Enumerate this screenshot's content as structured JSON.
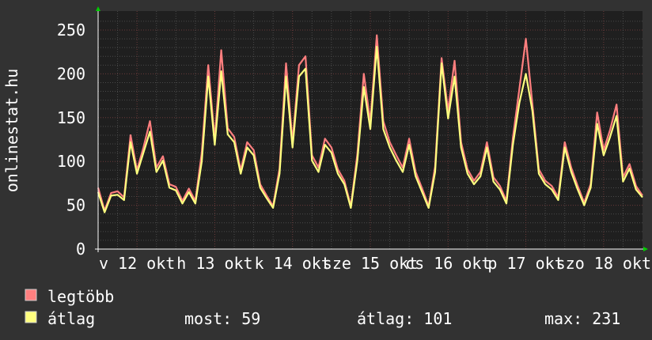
{
  "chart_data": {
    "type": "line",
    "ylabel": "onlinestat.hu",
    "ylim": [
      0,
      260
    ],
    "yticks": [
      0,
      50,
      100,
      150,
      200,
      250
    ],
    "x_hours": 168,
    "x_step_hours": 2,
    "xtick_labels": [
      "v 12 okt",
      "h 13 okt",
      "k 14 okt",
      "sze 15 okt",
      "cs 16 okt",
      "p 17 okt",
      "szo 18 okt"
    ],
    "grid": true,
    "series": [
      {
        "name": "legtöbb",
        "color": "#ff7f7f",
        "values": [
          70,
          44,
          64,
          66,
          59,
          130,
          90,
          116,
          146,
          93,
          106,
          74,
          71,
          55,
          69,
          55,
          110,
          210,
          125,
          227,
          138,
          128,
          90,
          122,
          113,
          74,
          61,
          49,
          92,
          212,
          122,
          210,
          220,
          107,
          93,
          126,
          116,
          91,
          78,
          49,
          108,
          200,
          145,
          244,
          146,
          122,
          107,
          93,
          126,
          88,
          69,
          49,
          94,
          218,
          158,
          215,
          122,
          91,
          78,
          88,
          122,
          82,
          72,
          55,
          127,
          183,
          240,
          166,
          91,
          78,
          72,
          59,
          122,
          93,
          72,
          53,
          74,
          156,
          113,
          136,
          165,
          82,
          97,
          72,
          61
        ]
      },
      {
        "name": "átlag",
        "color": "#ffff7f",
        "values": [
          65,
          42,
          61,
          62,
          56,
          122,
          86,
          110,
          134,
          88,
          101,
          70,
          67,
          52,
          65,
          52,
          100,
          197,
          119,
          203,
          131,
          122,
          86,
          116,
          107,
          70,
          58,
          47,
          86,
          197,
          116,
          197,
          206,
          101,
          88,
          119,
          110,
          86,
          74,
          47,
          101,
          185,
          137,
          231,
          137,
          116,
          101,
          88,
          119,
          83,
          65,
          47,
          88,
          212,
          149,
          197,
          116,
          86,
          74,
          83,
          116,
          77,
          68,
          52,
          119,
          167,
          200,
          158,
          86,
          74,
          68,
          56,
          116,
          88,
          68,
          50,
          70,
          143,
          107,
          128,
          152,
          77,
          92,
          68,
          59
        ]
      }
    ]
  },
  "legend": {
    "items": [
      {
        "label": "legtöbb",
        "color": "#ff7f7f"
      },
      {
        "label": "átlag",
        "color": "#ffff7f"
      }
    ],
    "stats": {
      "now_label": "most: 59",
      "avg_label": "átlag: 101",
      "max_label": "max: 231"
    }
  }
}
